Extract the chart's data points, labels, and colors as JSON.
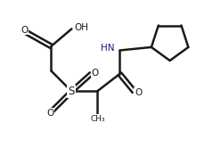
{
  "bg_color": "#ffffff",
  "line_color": "#3d3d3d",
  "line_width": 1.8,
  "text_color": "#1a1a8c",
  "figsize": [
    2.48,
    1.75
  ],
  "dpi": 100,
  "xlim": [
    0,
    10
  ],
  "ylim": [
    0,
    7.5
  ]
}
